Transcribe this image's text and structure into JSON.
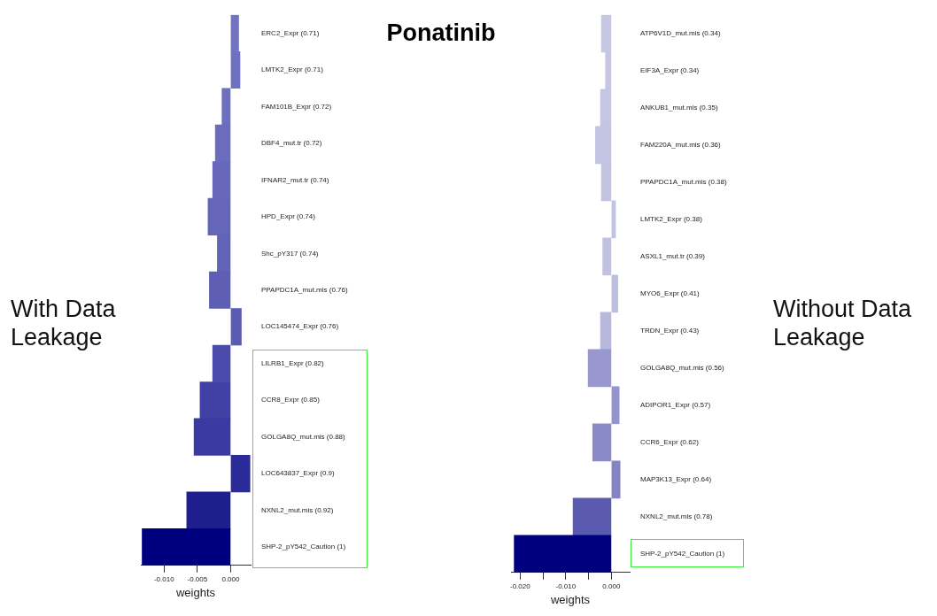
{
  "chart_data": [
    {
      "type": "bar",
      "orientation": "horizontal",
      "ylabel": "With Data Leakage",
      "xlabel": "weights",
      "categories": [
        "ERC2_Expr (0.71)",
        "LMTK2_Expr (0.71)",
        "FAM101B_Expr (0.72)",
        "DBF4_mut.tr (0.72)",
        "IFNAR2_mut.tr (0.74)",
        "HPD_Expr (0.74)",
        "Shc_pY317 (0.74)",
        "PPAPDC1A_mut.mis (0.76)",
        "LOC145474_Expr (0.76)",
        "LILRB1_Expr (0.82)",
        "CCR8_Expr (0.85)",
        "GOLGA8Q_mut.mis (0.88)",
        "LOC643837_Expr (0.9)",
        "NXNL2_mut.mis (0.92)",
        "SHP-2_pY542_Caution (1)"
      ],
      "values": [
        0.0012,
        0.0014,
        -0.0013,
        -0.0023,
        -0.0027,
        -0.0034,
        -0.002,
        -0.0032,
        0.0016,
        -0.0027,
        -0.0046,
        -0.0055,
        0.0029,
        -0.0066,
        -0.0133
      ],
      "colors": [
        "#7373c3",
        "#7070c0",
        "#6e6ebf",
        "#6c6cbd",
        "#6868bb",
        "#6565b9",
        "#6262b7",
        "#5e5eb5",
        "#5b5bb3",
        "#4b4bab",
        "#4040a5",
        "#3a3aa2",
        "#2a2a98",
        "#1e1e8e",
        "#00007f"
      ],
      "xlim": [
        -0.0135,
        0.003
      ],
      "xticks": [
        {
          "value": -0.01,
          "label": "-0.010"
        },
        {
          "value": -0.005,
          "label": "-0.005"
        },
        {
          "value": 0,
          "label": "0.000"
        }
      ],
      "grid": false,
      "legend": false
    },
    {
      "type": "bar",
      "orientation": "horizontal",
      "title": "Ponatinib",
      "ylabel": "Without Data Leakage",
      "xlabel": "weights",
      "categories": [
        "ATP6V1D_mut.mis (0.34)",
        "EIF3A_Expr (0.34)",
        "ANKUB1_mut.mis (0.35)",
        "FAM220A_mut.mis (0.36)",
        "PPAPDC1A_mut.mis (0.38)",
        "LMTK2_Expr (0.38)",
        "ASXL1_mut.tr (0.39)",
        "MYO6_Expr (0.41)",
        "TRDN_Expr (0.43)",
        "GOLGA8Q_mut.mis (0.56)",
        "ADIPOR1_Expr (0.57)",
        "CCR6_Expr (0.62)",
        "MAP3K13_Expr (0.64)",
        "NXNL2_mut.mis (0.78)",
        "SHP-2_pY542_Caution (1)"
      ],
      "values": [
        -0.0022,
        -0.0013,
        -0.0024,
        -0.0035,
        -0.0022,
        0.0009,
        -0.0019,
        0.0014,
        -0.0024,
        -0.0051,
        0.0017,
        -0.0041,
        0.0019,
        -0.0084,
        -0.0213
      ],
      "colors": [
        "#c7c7e5",
        "#c7c7e5",
        "#c5c5e4",
        "#c4c4e3",
        "#c2c2e2",
        "#c2c2e2",
        "#c0c0e1",
        "#bdbde0",
        "#b8b8dd",
        "#9898cf",
        "#9494cd",
        "#8a8ac8",
        "#8484c5",
        "#5a5ab0",
        "#00007f"
      ],
      "xlim": [
        -0.022,
        0.004
      ],
      "xticks": [
        {
          "value": -0.02,
          "label": "-0.020"
        },
        {
          "value": -0.015,
          "label": null
        },
        {
          "value": -0.01,
          "label": "-0.010"
        },
        {
          "value": -0.005,
          "label": null
        },
        {
          "value": 0,
          "label": "0.000"
        }
      ],
      "grid": false,
      "legend": false
    }
  ]
}
